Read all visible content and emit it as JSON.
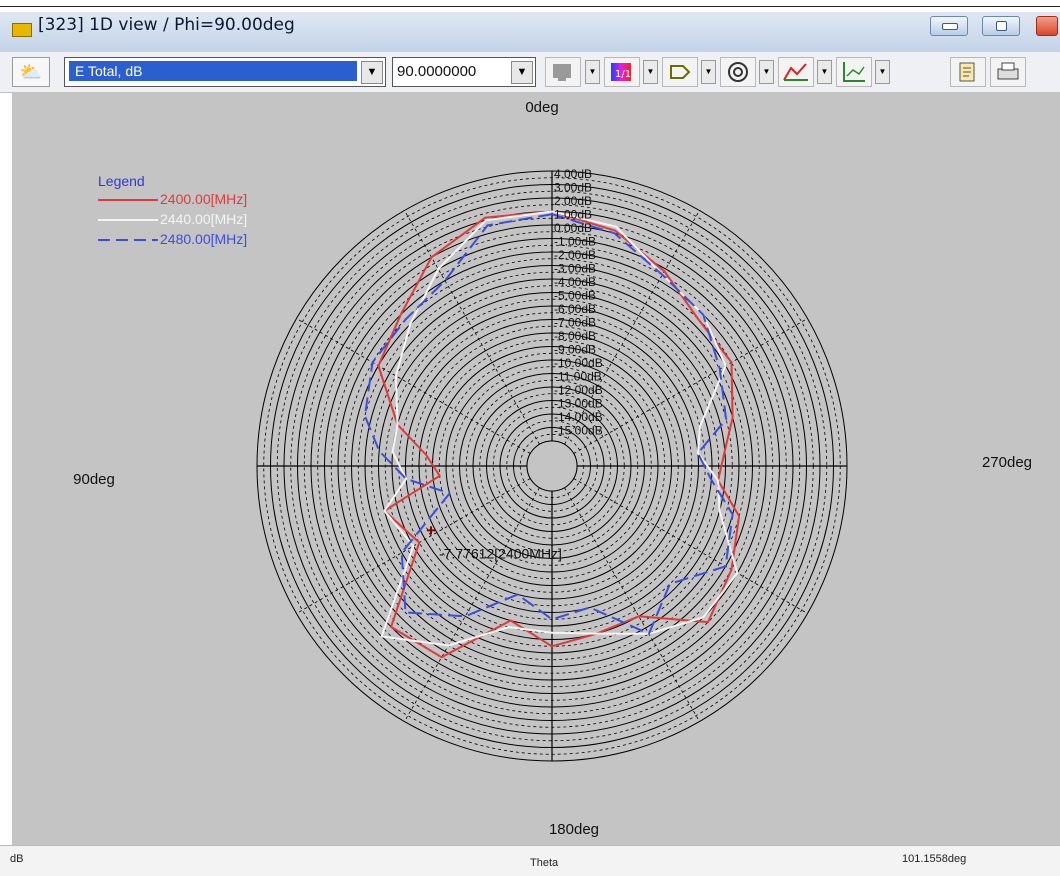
{
  "window": {
    "title": "[323] 1D view / Phi=90.00deg"
  },
  "toolbar": {
    "quantity": "E Total, dB",
    "phi_value": "90.0000000",
    "icons": [
      "view-icon",
      "color-icon",
      "palette-icon",
      "export-icon",
      "circle-icon",
      "curve-icon",
      "axis-icon",
      "copy-icon",
      "print-icon"
    ]
  },
  "chart_data": {
    "type": "polar-line",
    "axis_angles": {
      "top": "0deg",
      "left": "90deg",
      "bottom": "180deg",
      "right": "270deg"
    },
    "radial_labels": [
      "4.00dB",
      "3.00dB",
      "2.00dB",
      "1.00dB",
      "0.00dB",
      "-1.00dB",
      "-2.00dB",
      "-3.00dB",
      "-4.00dB",
      "-5.00dB",
      "-6.00dB",
      "-7.00dB",
      "-8.00dB",
      "-9.00dB",
      "-10.00dB",
      "-11.00dB",
      "-12.00dB",
      "-13.00dB",
      "-14.00dB",
      "-15.00dB"
    ],
    "rlim": [
      -16,
      4
    ],
    "legend": {
      "title": "Legend",
      "position": "top-left"
    },
    "marker_label": "-7.77612[2400MHz]",
    "series": [
      {
        "name": "2400.00[MHz]",
        "color": "#e03a3a",
        "dash": "solid",
        "theta": [
          0,
          15,
          30,
          45,
          60,
          75,
          85,
          95,
          105,
          120,
          135,
          150,
          165,
          180,
          195,
          210,
          225,
          240,
          255,
          265,
          275,
          285,
          300,
          315,
          330,
          345,
          360
        ],
        "r": [
          1.0,
          1.2,
          0.0,
          -2.0,
          -3.0,
          -6.0,
          -8.5,
          -9.5,
          -5.0,
          -6.5,
          -1.0,
          -1.5,
          -6.0,
          -4.5,
          -5.0,
          -5.0,
          -1.5,
          -2.5,
          -3.5,
          -5.5,
          -5.0,
          -4.0,
          -2.5,
          -2.5,
          -1.2,
          0.2,
          1.0
        ]
      },
      {
        "name": "2440.00[MHz]",
        "color": "#f4f4f4",
        "dash": "solid",
        "theta": [
          0,
          15,
          30,
          45,
          60,
          75,
          85,
          95,
          105,
          120,
          135,
          150,
          165,
          180,
          195,
          210,
          225,
          240,
          255,
          265,
          275,
          285,
          300,
          315,
          330,
          345,
          360
        ],
        "r": [
          1.0,
          1.0,
          -1.0,
          -3.0,
          -4.5,
          -6.0,
          -6.0,
          -7.0,
          -5.0,
          -6.0,
          0.0,
          -2.5,
          -5.5,
          -5.5,
          -5.0,
          -3.5,
          -2.0,
          -2.0,
          -5.0,
          -5.5,
          -7.0,
          -6.5,
          -3.0,
          -2.0,
          -1.5,
          0.5,
          1.0
        ]
      },
      {
        "name": "2480.00[MHz]",
        "color": "#3a4ee0",
        "dash": "dashed",
        "theta": [
          0,
          15,
          30,
          45,
          60,
          75,
          85,
          95,
          105,
          120,
          135,
          150,
          165,
          180,
          195,
          210,
          225,
          240,
          255,
          265,
          275,
          285,
          300,
          315,
          330,
          345,
          360
        ],
        "r": [
          0.8,
          0.6,
          -2.0,
          -2.5,
          -2.5,
          -3.5,
          -5.0,
          -7.0,
          -10.0,
          -5.0,
          -2.5,
          -5.0,
          -8.0,
          -6.5,
          -7.0,
          -3.5,
          -5.5,
          -3.0,
          -4.0,
          -6.0,
          -7.0,
          -4.5,
          -3.5,
          -2.0,
          -1.5,
          0.0,
          0.8
        ]
      }
    ]
  },
  "status": {
    "left": "dB",
    "center": "Theta",
    "right": "101.1558deg"
  }
}
